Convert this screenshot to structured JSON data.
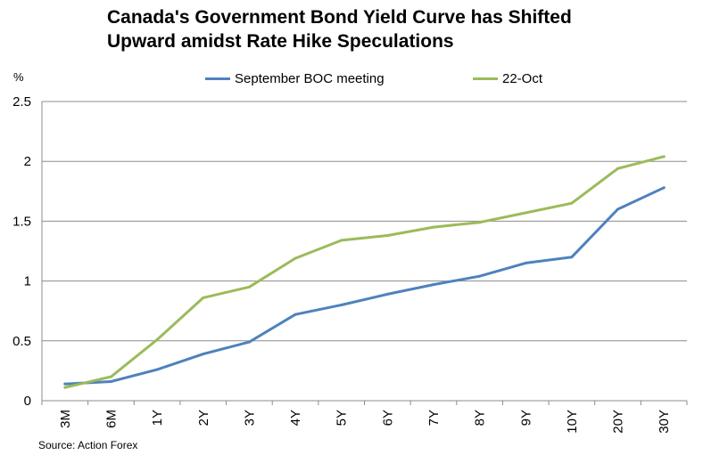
{
  "chart_data": {
    "type": "line",
    "title_lines": [
      "Canada's Government Bond Yield Curve has Shifted",
      "Upward amidst Rate Hike Speculations"
    ],
    "ylabel": "%",
    "xlabel": "",
    "ylim": [
      0,
      2.5
    ],
    "yticks": [
      "0",
      "0.5",
      "1",
      "1.5",
      "2",
      "2.5"
    ],
    "ytick_values": [
      0,
      0.5,
      1,
      1.5,
      2,
      2.5
    ],
    "categories": [
      "3M",
      "6M",
      "1Y",
      "2Y",
      "3Y",
      "4Y",
      "5Y",
      "6Y",
      "7Y",
      "8Y",
      "9Y",
      "10Y",
      "20Y",
      "30Y"
    ],
    "grid": true,
    "legend_position": "top",
    "series": [
      {
        "name": "September BOC meeting",
        "color": "#4f81bd",
        "values": [
          0.14,
          0.16,
          0.26,
          0.39,
          0.49,
          0.72,
          0.8,
          0.89,
          0.97,
          1.04,
          1.15,
          1.2,
          1.6,
          1.78
        ]
      },
      {
        "name": "22-Oct",
        "color": "#9bbb59",
        "values": [
          0.11,
          0.2,
          0.51,
          0.86,
          0.95,
          1.19,
          1.34,
          1.38,
          1.45,
          1.49,
          1.57,
          1.65,
          1.94,
          2.04
        ]
      }
    ],
    "source": "Source: Action Forex"
  }
}
